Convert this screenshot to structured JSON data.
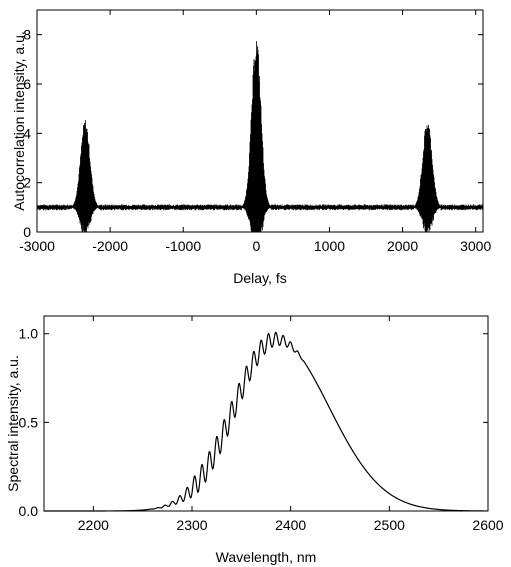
{
  "chart_data": [
    {
      "type": "line",
      "xlabel": "Delay, fs",
      "ylabel": "Autocorrelation intensity, a.u.",
      "xlim": [
        -3000,
        3100
      ],
      "ylim": [
        0,
        9
      ],
      "xticks": [
        -3000,
        -2000,
        -1000,
        0,
        1000,
        2000,
        3000
      ],
      "xtick_labels": [
        "-3000",
        "-2000",
        "-1000",
        "0",
        "1000",
        "2000",
        "3000"
      ],
      "yticks": [
        0,
        2,
        4,
        6,
        8
      ],
      "ytick_labels": [
        "0",
        "2",
        "4",
        "6",
        "8"
      ],
      "grid": false,
      "color": "#000000",
      "background_level": 1.0,
      "background_noise_amplitude": 0.12,
      "peaks": [
        {
          "x": -2340,
          "y": 4.6,
          "width_fs": 60
        },
        {
          "x": 0,
          "y": 8.0,
          "width_fs": 60
        },
        {
          "x": 2340,
          "y": 4.6,
          "width_fs": 60
        }
      ],
      "fringe_modulation": true
    },
    {
      "type": "line",
      "xlabel": "Wavelength, nm",
      "ylabel": "Spectral intensity, a.u.",
      "xlim": [
        2150,
        2600
      ],
      "ylim": [
        0,
        1.1
      ],
      "xticks": [
        2200,
        2300,
        2400,
        2500,
        2600
      ],
      "xtick_labels": [
        "2200",
        "2300",
        "2400",
        "2500",
        "2600"
      ],
      "yticks": [
        0.0,
        0.5,
        1.0
      ],
      "ytick_labels": [
        "0.0",
        "0.5",
        "1.0"
      ],
      "grid": false,
      "color": "#000000",
      "envelope": {
        "center_nm": 2385,
        "fwhm_nm": 110,
        "peak": 0.97
      },
      "modulation": {
        "period_nm": 7.5,
        "depth_max": 0.07,
        "visible_range_nm": [
          2250,
          2440
        ]
      }
    }
  ]
}
